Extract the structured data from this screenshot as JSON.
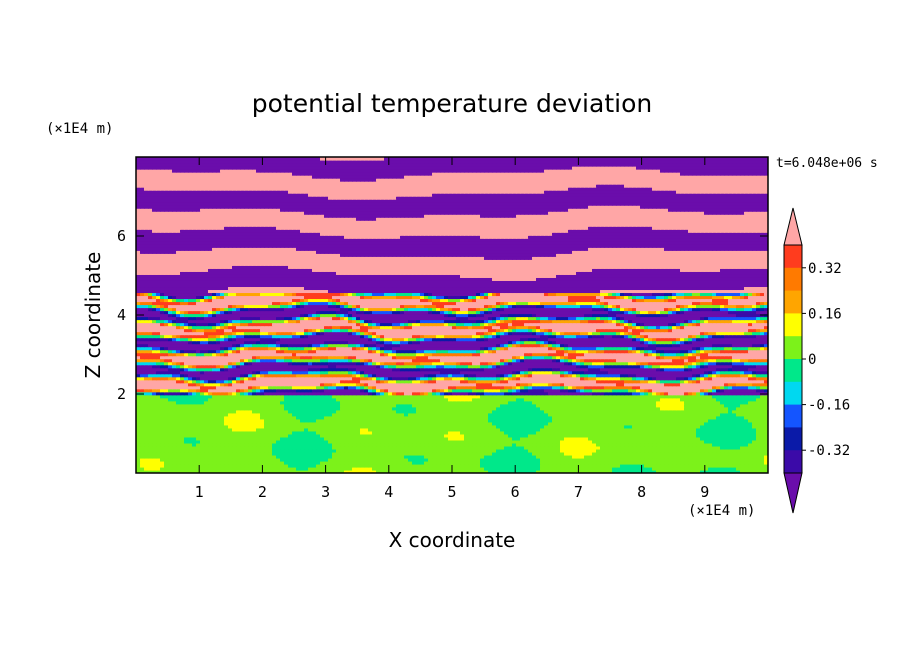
{
  "chart_data": {
    "type": "heatmap",
    "title": "potential temperature deviation",
    "xlabel": "X coordinate",
    "ylabel": "Z coordinate",
    "x_unit": "(×1E4 m)",
    "y_unit": "(×1E4 m)",
    "time_label": "t=6.048e+06 s",
    "xlim": [
      0,
      10
    ],
    "ylim": [
      0,
      8
    ],
    "x_ticks": [
      1,
      2,
      3,
      4,
      5,
      6,
      7,
      8,
      9
    ],
    "y_ticks": [
      2,
      4,
      6
    ],
    "colorbar": {
      "levels": [
        -0.48,
        -0.4,
        -0.32,
        -0.24,
        -0.16,
        -0.08,
        0,
        0.08,
        0.16,
        0.24,
        0.32,
        0.4,
        0.48
      ],
      "tick_labels": [
        "0.32",
        "0.16",
        "0",
        "-0.16",
        "-0.32"
      ],
      "tick_values": [
        0.32,
        0.16,
        0,
        -0.16,
        -0.32
      ],
      "colors": [
        "#6a0dab",
        "#3b0aa8",
        "#0a1aa8",
        "#1455ff",
        "#00d8f0",
        "#00e88a",
        "#7cf21a",
        "#ffff00",
        "#ffa500",
        "#ff7a00",
        "#ff3c1e",
        "#ffa6a6"
      ],
      "extend": "both"
    },
    "regions": [
      {
        "z_range": [
          0,
          2
        ],
        "description": "lower layer mostly 0 to 0.08 with patches -0.08 to 0"
      },
      {
        "z_range": [
          2,
          4.6
        ],
        "description": "turbulent mixed band with full range of values"
      },
      {
        "z_range": [
          4.6,
          8
        ],
        "description": "alternating horizontal bands of high (>0.48) and low (<-0.48) values"
      }
    ]
  }
}
